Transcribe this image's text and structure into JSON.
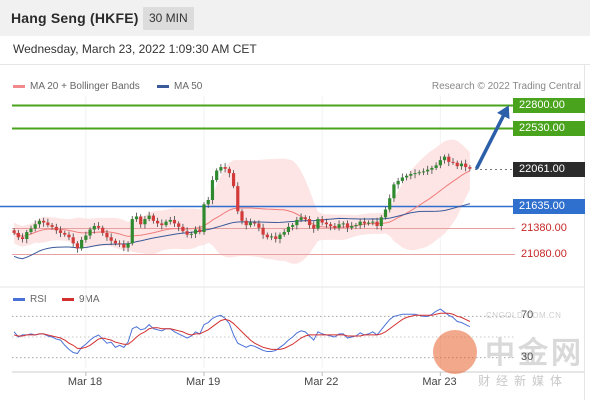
{
  "header": {
    "title": "Hang Seng (HKFE)",
    "timeframe": "30 MIN"
  },
  "date_line": "Wednesday, March 23, 2022 1:09:30 AM CET",
  "copyright": "Research © 2022 Trading Central",
  "legend": {
    "bollinger": "MA 20 + Bollinger Bands",
    "ma50": "MA 50",
    "rsi": "RSI",
    "rsi_ma": "9MA"
  },
  "colors": {
    "resistance": "#4aa31c",
    "last_price": "#2b2b2b",
    "pivot": "#2f6fce",
    "support": "#d33a3a",
    "bollinger": "#f07c7c",
    "band_fill": "#fde1e1",
    "ma50": "#3a5a9a",
    "candle_up": "#2f8a2f",
    "candle_down": "#d33a3a",
    "rsi": "#4a72d6",
    "rsi_ma": "#d32f2f",
    "arrow": "#2b5fa8"
  },
  "watermark": {
    "big": "中金网",
    "small": "财经新媒体",
    "url": "CNGOLD.COM.CN"
  },
  "chart_data": {
    "type": "candlestick",
    "price_axis": {
      "range": [
        20800,
        22900
      ]
    },
    "levels": [
      {
        "label": "22800.00",
        "value": 22800,
        "role": "resistance"
      },
      {
        "label": "22530.00",
        "value": 22530,
        "role": "resistance"
      },
      {
        "label": "22061.00",
        "value": 22061,
        "role": "last"
      },
      {
        "label": "21635.00",
        "value": 21635,
        "role": "pivot"
      },
      {
        "label": "21380.00",
        "value": 21380,
        "role": "support"
      },
      {
        "label": "21080.00",
        "value": 21080,
        "role": "support"
      }
    ],
    "x_labels": [
      {
        "label": "Mar 18",
        "bar": 17
      },
      {
        "label": "Mar 19",
        "bar": 45
      },
      {
        "label": "Mar 22",
        "bar": 73
      },
      {
        "label": "Mar 23",
        "bar": 101
      }
    ],
    "closes": [
      21320,
      21270,
      21250,
      21330,
      21370,
      21420,
      21460,
      21440,
      21410,
      21390,
      21350,
      21320,
      21300,
      21270,
      21200,
      21140,
      21240,
      21290,
      21360,
      21400,
      21380,
      21320,
      21270,
      21230,
      21200,
      21190,
      21150,
      21200,
      21480,
      21510,
      21420,
      21480,
      21520,
      21460,
      21430,
      21410,
      21450,
      21470,
      21430,
      21390,
      21340,
      21300,
      21310,
      21360,
      21330,
      21650,
      21700,
      21930,
      22040,
      22080,
      22060,
      22010,
      21860,
      21570,
      21460,
      21410,
      21440,
      21430,
      21380,
      21300,
      21270,
      21280,
      21250,
      21300,
      21330,
      21390,
      21410,
      21470,
      21500,
      21480,
      21410,
      21370,
      21480,
      21440,
      21420,
      21400,
      21380,
      21420,
      21430,
      21380,
      21400,
      21410,
      21450,
      21430,
      21440,
      21450,
      21400,
      21500,
      21590,
      21720,
      21880,
      21920,
      21960,
      21980,
      22000,
      22010,
      22020,
      22030,
      22050,
      22070,
      22100,
      22160,
      22200,
      22140,
      22130,
      22090,
      22120,
      22080,
      22061
    ],
    "rsi_axis": {
      "range": [
        20,
        80
      ],
      "ticks": [
        30,
        70
      ]
    },
    "rsi": [
      55,
      50,
      52,
      52,
      53,
      52,
      53,
      53,
      51,
      50,
      48,
      47,
      42,
      38,
      35,
      34,
      40,
      43,
      47,
      50,
      52,
      48,
      44,
      45,
      40,
      42,
      40,
      45,
      58,
      60,
      57,
      58,
      62,
      58,
      57,
      56,
      58,
      58,
      55,
      53,
      51,
      49,
      51,
      55,
      53,
      62,
      64,
      68,
      70,
      71,
      68,
      63,
      52,
      44,
      42,
      40,
      42,
      41,
      39,
      37,
      36,
      36,
      37,
      40,
      43,
      47,
      50,
      54,
      56,
      55,
      51,
      47,
      55,
      53,
      52,
      51,
      50,
      53,
      53,
      49,
      50,
      51,
      54,
      52,
      53,
      55,
      52,
      57,
      62,
      67,
      70,
      71,
      72,
      72,
      72,
      72,
      71,
      70,
      70,
      72,
      75,
      77,
      74,
      71,
      69,
      65,
      64,
      62,
      60
    ],
    "rsi_ma": [
      52,
      51,
      51,
      52,
      52,
      52,
      53,
      53,
      52,
      51,
      50,
      49,
      47,
      44,
      42,
      39,
      39,
      40,
      42,
      45,
      48,
      49,
      48,
      47,
      45,
      44,
      43,
      43,
      46,
      50,
      53,
      55,
      58,
      59,
      59,
      58,
      58,
      58,
      57,
      56,
      55,
      53,
      52,
      53,
      53,
      55,
      57,
      60,
      63,
      66,
      67,
      66,
      63,
      59,
      55,
      51,
      47,
      44,
      42,
      40,
      39,
      38,
      38,
      38,
      39,
      41,
      43,
      46,
      49,
      51,
      52,
      52,
      52,
      52,
      52,
      52,
      52,
      52,
      52,
      51,
      51,
      51,
      51,
      52,
      52,
      52,
      52,
      53,
      55,
      58,
      61,
      64,
      67,
      69,
      70,
      71,
      71,
      71,
      71,
      71,
      72,
      73,
      73,
      73,
      72,
      70,
      69,
      67,
      65
    ]
  }
}
